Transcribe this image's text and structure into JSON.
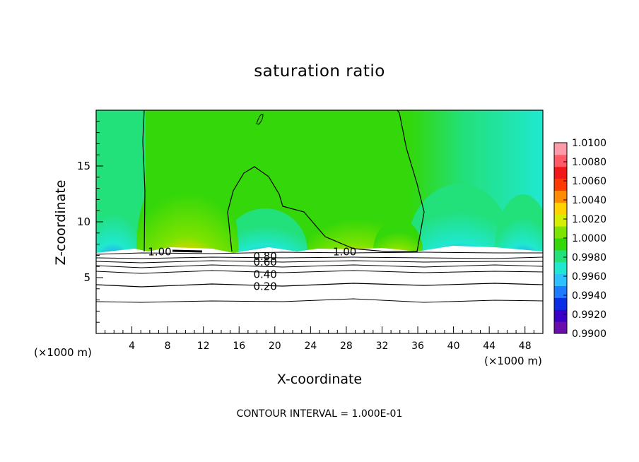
{
  "chart_data": {
    "type": "heatmap",
    "title": "saturation ratio",
    "xlabel": "X-coordinate",
    "ylabel": "Z-coordinate",
    "x_unit_label": "(×1000 m)",
    "xlim": [
      0,
      50
    ],
    "ylim": [
      0,
      20
    ],
    "x_ticks": [
      4,
      8,
      12,
      16,
      20,
      24,
      28,
      32,
      36,
      40,
      44,
      48
    ],
    "y_ticks": [
      5,
      10,
      15
    ],
    "colorbar": {
      "min": 0.99,
      "max": 1.01,
      "tick_labels": [
        "1.0100",
        "1.0080",
        "1.0060",
        "1.0040",
        "1.0020",
        "1.0000",
        "0.9980",
        "0.9960",
        "0.9940",
        "0.9920",
        "0.9900"
      ],
      "colors": [
        "#6a0dad",
        "#3a00c8",
        "#0a2ee6",
        "#1e7bff",
        "#2fc1ff",
        "#20e8d0",
        "#22e07a",
        "#33d70a",
        "#7de300",
        "#d6ee00",
        "#ffd200",
        "#ff8c00",
        "#ff3a00",
        "#f01818",
        "#ff5a66",
        "#ff9aa8"
      ]
    },
    "contour_labels": [
      {
        "text": "1.00",
        "x": 5.8,
        "z": 7.3
      },
      {
        "text": "1.00",
        "x": 26.5,
        "z": 7.3
      },
      {
        "text": "0.80",
        "x": 17.6,
        "z": 6.9
      },
      {
        "text": "0.60",
        "x": 17.6,
        "z": 6.4
      },
      {
        "text": "0.40",
        "x": 17.6,
        "z": 5.3
      },
      {
        "text": "0.20",
        "x": 17.6,
        "z": 4.2
      }
    ],
    "contour_interval_text": "CONTOUR INTERVAL = 1.000E-01"
  }
}
